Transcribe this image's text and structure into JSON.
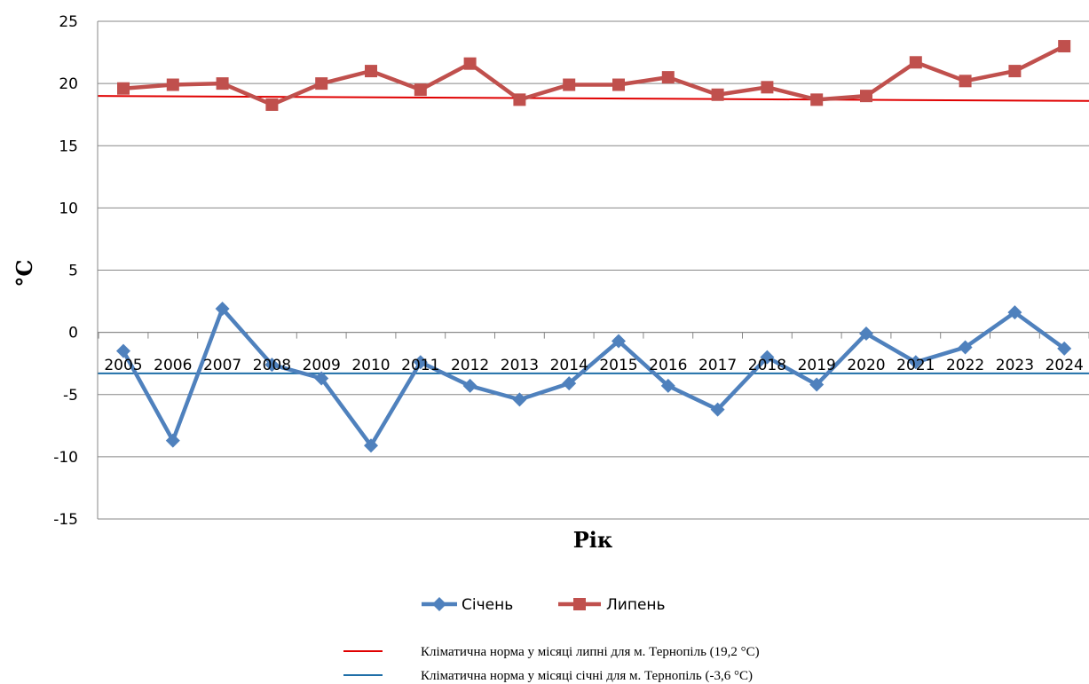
{
  "chart_data": {
    "type": "line",
    "xlabel": "Рік",
    "ylabel": "°C",
    "ylim": [
      -15,
      25
    ],
    "yticks": [
      25,
      20,
      15,
      10,
      5,
      0,
      -5,
      -10,
      -15
    ],
    "grid": true,
    "legend_position": "bottom",
    "categories": [
      "2005",
      "2006",
      "2007",
      "2008",
      "2009",
      "2010",
      "2011",
      "2012",
      "2013",
      "2014",
      "2015",
      "2016",
      "2017",
      "2018",
      "2019",
      "2020",
      "2021",
      "2022",
      "2023",
      "2024"
    ],
    "series": [
      {
        "name": "Січень",
        "color": "#4f81bd",
        "marker": "diamond",
        "values": [
          -1.5,
          -8.7,
          1.9,
          -2.6,
          -3.7,
          -9.1,
          -2.4,
          -4.3,
          -5.4,
          -4.1,
          -0.7,
          -4.3,
          -6.2,
          -2.0,
          -4.2,
          -0.1,
          -2.4,
          -1.2,
          1.6,
          -1.3
        ]
      },
      {
        "name": "Липень",
        "color": "#c0504d",
        "marker": "square",
        "values": [
          19.6,
          19.9,
          20.0,
          18.3,
          20.0,
          21.0,
          19.5,
          21.6,
          18.7,
          19.9,
          19.9,
          20.5,
          19.1,
          19.7,
          18.7,
          19.0,
          21.7,
          20.2,
          21.0,
          23.0
        ]
      }
    ],
    "reference_lines": [
      {
        "label": "Кліматична норма у місяці липні для м. Тернопіль (19,2 °C)",
        "color": "#e00000",
        "y_start": 19.0,
        "y_end": 18.6
      },
      {
        "label": "Кліматична норма у місяці січні для м. Тернопіль (-3,6 °C)",
        "color": "#1f6fa8",
        "y_start": -3.3,
        "y_end": -3.3
      }
    ]
  }
}
